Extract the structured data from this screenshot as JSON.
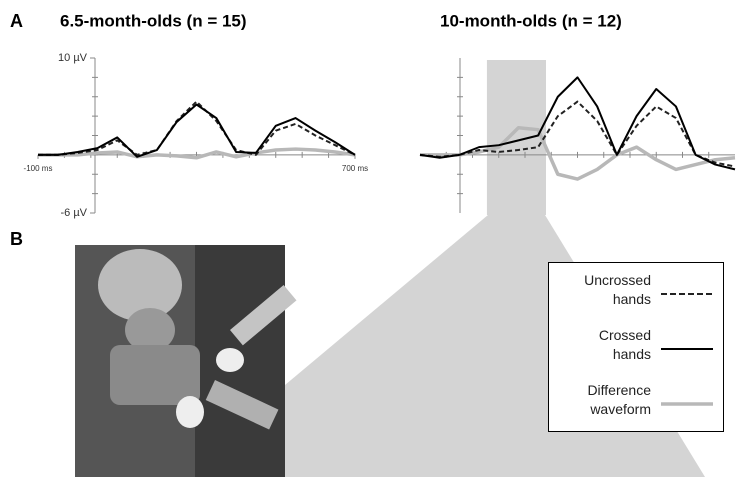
{
  "photo": {
    "label": "B"
  },
  "chart_data": [
    {
      "type": "line",
      "panel_label": "A",
      "title": "6.5-month-olds (n = 15)",
      "x": [
        -100,
        -50,
        0,
        50,
        100,
        150,
        200,
        250,
        300,
        350,
        400,
        450,
        500,
        550,
        600,
        650,
        700
      ],
      "xlim": [
        -100,
        700
      ],
      "ylim": [
        -6,
        10
      ],
      "xticks": [
        {
          "value": -100,
          "label": "-100 ms"
        },
        {
          "value": 700,
          "label": "700 ms"
        }
      ],
      "yticks": [
        {
          "value": 10,
          "label": "10 µV"
        },
        {
          "value": -6,
          "label": "-6 µV"
        }
      ],
      "series": [
        {
          "color": "#222222",
          "dashed": true,
          "values": [
            0,
            0,
            0.2,
            0.5,
            1.5,
            0,
            0.5,
            3.5,
            5.5,
            3.5,
            0.5,
            0,
            2.5,
            3.2,
            2,
            1,
            0
          ]
        },
        {
          "color": "#000000",
          "dashed": false,
          "values": [
            0,
            0,
            0.3,
            0.7,
            1.8,
            -0.2,
            0.5,
            3.4,
            5.2,
            3.8,
            0.3,
            0.2,
            3,
            3.8,
            2.5,
            1.3,
            0
          ]
        },
        {
          "color": "#b8b8b8",
          "dashed": false,
          "values": [
            0,
            0,
            0,
            0.2,
            0.3,
            -0.2,
            0,
            -0.1,
            -0.3,
            0.3,
            -0.2,
            0.2,
            0.5,
            0.6,
            0.5,
            0.3,
            0
          ]
        }
      ]
    },
    {
      "type": "line",
      "title": "10-month-olds (n = 12)",
      "x": [
        -100,
        -50,
        0,
        50,
        100,
        150,
        200,
        250,
        300,
        350,
        400,
        450,
        500,
        550,
        600,
        650,
        700
      ],
      "xlim": [
        -100,
        700
      ],
      "ylim": [
        -6,
        10
      ],
      "highlight_x": [
        70,
        220
      ],
      "legend": "lower-right",
      "series": [
        {
          "name": "Uncrossed hands",
          "color": "#222222",
          "dashed": true,
          "values": [
            0,
            -0.2,
            0,
            0.5,
            0.3,
            0.5,
            0.8,
            4,
            5.5,
            3.5,
            0,
            3,
            5,
            3.8,
            0,
            -0.8,
            -1.2
          ]
        },
        {
          "name": "Crossed hands",
          "color": "#000000",
          "dashed": false,
          "values": [
            0,
            -0.3,
            0,
            0.8,
            1,
            1.5,
            2,
            6,
            8,
            5,
            0,
            4,
            6.8,
            5,
            0,
            -1,
            -1.5
          ]
        },
        {
          "name": "Difference waveform",
          "color": "#b8b8b8",
          "dashed": false,
          "values": [
            0,
            0,
            0,
            0.3,
            0.8,
            2.8,
            2.6,
            -2,
            -2.5,
            -1.5,
            0,
            0.8,
            -0.5,
            -1.5,
            -1,
            -0.5,
            -0.3
          ]
        }
      ]
    }
  ]
}
